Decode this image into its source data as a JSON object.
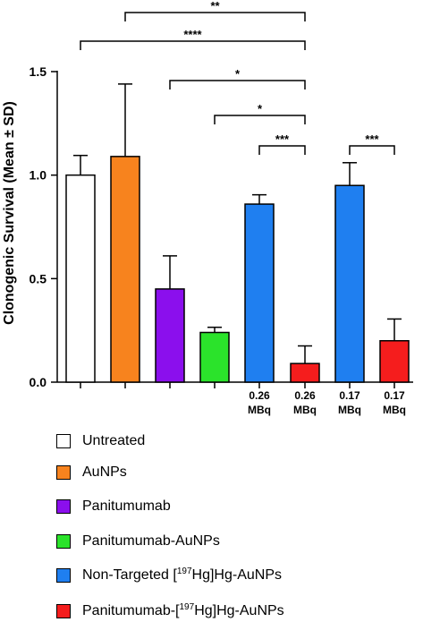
{
  "chart_data": {
    "type": "bar",
    "ylabel": "Clonogenic Survival (Mean ± SD)",
    "ylim": [
      0,
      1.5
    ],
    "yticks": [
      "0.0",
      "0.5",
      "1.0",
      "1.5"
    ],
    "bars": [
      {
        "series": "Untreated",
        "value": 1.0,
        "sd": 0.095,
        "dose": [
          "",
          ""
        ]
      },
      {
        "series": "AuNPs",
        "value": 1.09,
        "sd": 0.35,
        "dose": [
          "",
          ""
        ]
      },
      {
        "series": "Panitumumab",
        "value": 0.45,
        "sd": 0.16,
        "dose": [
          "",
          ""
        ]
      },
      {
        "series": "Panitumumab-AuNPs",
        "value": 0.24,
        "sd": 0.025,
        "dose": [
          "",
          ""
        ]
      },
      {
        "series": "Non-Targeted [197Hg]Hg-AuNPs",
        "value": 0.86,
        "sd": 0.045,
        "dose": [
          "0.26",
          "MBq"
        ]
      },
      {
        "series": "Panitumumab-[197Hg]Hg-AuNPs",
        "value": 0.09,
        "sd": 0.085,
        "dose": [
          "0.26",
          "MBq"
        ]
      },
      {
        "series": "Non-Targeted [197Hg]Hg-AuNPs",
        "value": 0.95,
        "sd": 0.11,
        "dose": [
          "0.17",
          "MBq"
        ]
      },
      {
        "series": "Panitumumab-[197Hg]Hg-AuNPs",
        "value": 0.2,
        "sd": 0.105,
        "dose": [
          "0.17",
          "MBq"
        ]
      }
    ],
    "significance": [
      {
        "from": 2,
        "to": 6,
        "label": "**"
      },
      {
        "from": 1,
        "to": 6,
        "label": "****"
      },
      {
        "from": 3,
        "to": 6,
        "label": "*"
      },
      {
        "from": 4,
        "to": 6,
        "label": "*"
      },
      {
        "from": 5,
        "to": 6,
        "label": "***"
      },
      {
        "from": 7,
        "to": 8,
        "label": "***"
      }
    ],
    "legend": {
      "position": "bottom",
      "entries": [
        {
          "name": "Untreated",
          "pre": "Untreated",
          "sup": "",
          "post": "",
          "color": "#ffffff"
        },
        {
          "name": "AuNPs",
          "pre": "AuNPs",
          "sup": "",
          "post": "",
          "color": "#f7831e"
        },
        {
          "name": "Panitumumab",
          "pre": "Panitumumab",
          "sup": "",
          "post": "",
          "color": "#8b0fed"
        },
        {
          "name": "Panitumumab-AuNPs",
          "pre": "Panitumumab-AuNPs",
          "sup": "",
          "post": "",
          "color": "#2be32b"
        },
        {
          "name": "Non-Targeted [197Hg]Hg-AuNPs",
          "pre": "Non-Targeted [",
          "sup": "197",
          "post": "Hg]Hg-AuNPs",
          "color": "#1f7ff0"
        },
        {
          "name": "Panitumumab-[197Hg]Hg-AuNPs",
          "pre": "Panitumumab-[",
          "sup": "197",
          "post": "Hg]Hg-AuNPs",
          "color": "#f51d1d"
        }
      ]
    }
  }
}
